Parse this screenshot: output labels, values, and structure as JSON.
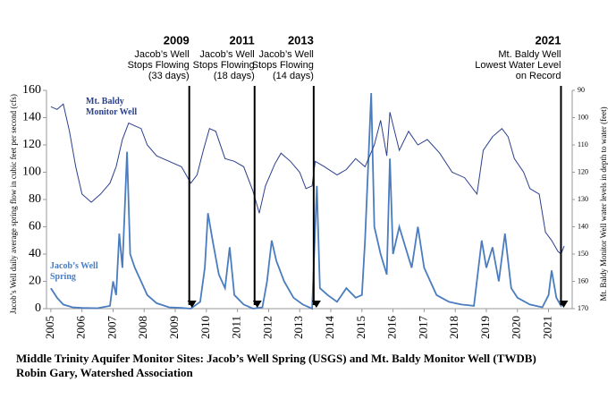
{
  "chart_data": {
    "type": "line",
    "y_label": "Jacob’s Well daily average spring flow in cubic feet per second (cfs)",
    "y2_label": "Mt. Baldy Monitor Well water levels in depth to water (feet)",
    "xlim": [
      2004.86,
      2021.76
    ],
    "xticks": [
      2005,
      2006,
      2007,
      2008,
      2009,
      2010,
      2011,
      2012,
      2013,
      2014,
      2015,
      2016,
      2017,
      2018,
      2019,
      2020,
      2021
    ],
    "ylim": [
      0,
      160
    ],
    "yticks": [
      0,
      20,
      40,
      60,
      80,
      100,
      120,
      140,
      160
    ],
    "y2lim": [
      170,
      90
    ],
    "y2ticks": [
      90,
      100,
      110,
      120,
      130,
      140,
      150,
      160,
      170
    ],
    "series": [
      {
        "name": "Jacob’s Well Spring",
        "color": "#4a7cc0",
        "x": [
          2005.0,
          2005.2,
          2005.4,
          2005.7,
          2006.0,
          2006.5,
          2006.9,
          2007.0,
          2007.1,
          2007.2,
          2007.3,
          2007.45,
          2007.55,
          2007.7,
          2007.9,
          2008.1,
          2008.4,
          2008.8,
          2009.2,
          2009.5,
          2009.8,
          2009.95,
          2010.05,
          2010.2,
          2010.4,
          2010.6,
          2010.75,
          2010.9,
          2011.2,
          2011.5,
          2011.8,
          2011.95,
          2012.1,
          2012.25,
          2012.5,
          2012.8,
          2013.1,
          2013.4,
          2013.55,
          2013.65,
          2013.9,
          2014.2,
          2014.5,
          2014.8,
          2015.0,
          2015.1,
          2015.3,
          2015.4,
          2015.6,
          2015.8,
          2015.9,
          2016.0,
          2016.2,
          2016.4,
          2016.6,
          2016.8,
          2017.0,
          2017.2,
          2017.4,
          2017.8,
          2018.2,
          2018.6,
          2018.85,
          2019.0,
          2019.2,
          2019.4,
          2019.6,
          2019.8,
          2020.0,
          2020.4,
          2020.8,
          2021.0,
          2021.1,
          2021.25,
          2021.4,
          2021.5
        ],
        "values": [
          15,
          8,
          3,
          1,
          0.5,
          0.3,
          2,
          20,
          10,
          55,
          30,
          115,
          40,
          30,
          20,
          10,
          4,
          1,
          0.5,
          0,
          5,
          30,
          70,
          50,
          25,
          15,
          45,
          10,
          3,
          0,
          1,
          20,
          50,
          35,
          20,
          8,
          3,
          0,
          90,
          15,
          10,
          5,
          15,
          8,
          10,
          50,
          158,
          60,
          40,
          25,
          110,
          40,
          60,
          45,
          30,
          60,
          30,
          20,
          10,
          5,
          3,
          2,
          50,
          30,
          45,
          20,
          55,
          15,
          8,
          3,
          1,
          10,
          28,
          8,
          2,
          5
        ]
      },
      {
        "name": "Mt. Baldy Monitor Well",
        "color": "#2b3f8c",
        "axis": "y2",
        "x": [
          2005.0,
          2005.2,
          2005.4,
          2005.6,
          2005.8,
          2006.0,
          2006.3,
          2006.6,
          2006.9,
          2007.1,
          2007.3,
          2007.5,
          2007.7,
          2007.9,
          2008.1,
          2008.4,
          2008.8,
          2009.2,
          2009.5,
          2009.7,
          2009.9,
          2010.1,
          2010.3,
          2010.6,
          2010.9,
          2011.2,
          2011.5,
          2011.7,
          2011.9,
          2012.2,
          2012.4,
          2012.7,
          2013.0,
          2013.2,
          2013.4,
          2013.5,
          2013.8,
          2014.2,
          2014.5,
          2014.8,
          2015.1,
          2015.4,
          2015.6,
          2015.8,
          2015.9,
          2016.2,
          2016.5,
          2016.8,
          2017.1,
          2017.5,
          2017.9,
          2018.3,
          2018.7,
          2018.9,
          2019.2,
          2019.5,
          2019.7,
          2019.9,
          2020.2,
          2020.4,
          2020.7,
          2020.9,
          2021.1,
          2021.3,
          2021.4,
          2021.5
        ],
        "values": [
          96,
          97,
          95,
          105,
          118,
          128,
          131,
          128,
          124,
          118,
          108,
          102,
          103,
          104,
          110,
          114,
          116,
          118,
          124,
          121,
          112,
          104,
          105,
          115,
          116,
          118,
          127,
          135,
          125,
          117,
          113,
          116,
          120,
          126,
          125,
          116,
          118,
          121,
          119,
          115,
          118,
          110,
          101,
          114,
          98,
          112,
          105,
          110,
          108,
          113,
          120,
          122,
          128,
          112,
          107,
          104,
          107,
          115,
          120,
          126,
          128,
          142,
          145,
          149,
          150,
          147
        ]
      }
    ],
    "annotations": [
      {
        "x": 2009.45,
        "title": "2009",
        "lines": [
          "Jacob’s Well",
          "Stops Flowing",
          "(33 days)"
        ]
      },
      {
        "x": 2011.55,
        "title": "2011",
        "lines": [
          "Jacob’s Well",
          "Stops Flowing",
          "(18 days)"
        ]
      },
      {
        "x": 2013.45,
        "title": "2013",
        "lines": [
          "Jacob’s Well",
          "Stops Flowing",
          "(14 days)"
        ]
      },
      {
        "x": 2021.4,
        "title": "2021",
        "lines": [
          "Mt. Baldy Well",
          "Lowest Water Level",
          "on Record"
        ]
      }
    ]
  },
  "caption": [
    "Middle Trinity Aquifer Monitor Sites: Jacob’s Well Spring (USGS) and Mt. Baldy Monitor Well (TWDB)",
    "Robin Gary, Watershed Association"
  ]
}
